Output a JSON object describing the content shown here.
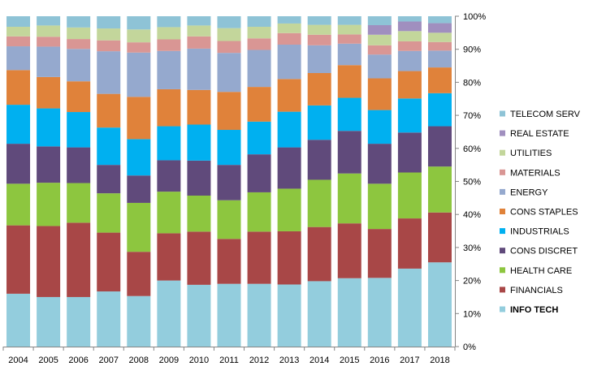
{
  "chart_data": {
    "type": "bar",
    "stacked": true,
    "normalized": true,
    "categories": [
      "2004",
      "2005",
      "2006",
      "2007",
      "2008",
      "2009",
      "2010",
      "2011",
      "2012",
      "2013",
      "2014",
      "2015",
      "2016",
      "2017",
      "2018"
    ],
    "y_ticks": [
      "0%",
      "10%",
      "20%",
      "30%",
      "40%",
      "50%",
      "60%",
      "70%",
      "80%",
      "90%",
      "100%"
    ],
    "ylim": [
      0,
      100
    ],
    "y_axis_side": "right",
    "grid": false,
    "legend_position": "right",
    "series": [
      {
        "name": "INFO TECH",
        "color": "#93CDDD",
        "bold": true,
        "values": [
          16,
          15,
          15,
          16.7,
          15.3,
          20,
          18.7,
          19,
          19,
          18.8,
          19.8,
          20.7,
          20.8,
          23.6,
          25.5
        ]
      },
      {
        "name": "FINANCIALS",
        "color": "#A84747",
        "values": [
          20.7,
          21.5,
          22.5,
          17.8,
          13.4,
          14.3,
          16.1,
          13.6,
          15.8,
          16.1,
          16.4,
          16.6,
          14.8,
          15.2,
          15.1
        ]
      },
      {
        "name": "HEALTH CARE",
        "color": "#8DC63F",
        "values": [
          12.6,
          13.1,
          12,
          11.9,
          14.8,
          12.6,
          10.9,
          11.7,
          11.9,
          12.9,
          14.3,
          15.1,
          13.7,
          13.9,
          13.9
        ]
      },
      {
        "name": "CONS DISCRET",
        "color": "#604A7B",
        "values": [
          12.1,
          11,
          10.8,
          8.6,
          8.3,
          9.5,
          10.6,
          10.7,
          11.5,
          12.5,
          12.1,
          12.9,
          12.1,
          12.1,
          12.2
        ]
      },
      {
        "name": "INDUSTRIALS",
        "color": "#00B0F0",
        "values": [
          11.8,
          11.5,
          10.7,
          11.3,
          11,
          10.3,
          10.9,
          10.6,
          9.9,
          10.8,
          10.4,
          10,
          10.2,
          10.3,
          10
        ]
      },
      {
        "name": "CONS STAPLES",
        "color": "#E0823A",
        "values": [
          10.5,
          9.5,
          9.3,
          10.2,
          12.8,
          11.2,
          10.5,
          11.5,
          10.5,
          9.9,
          9.8,
          9.9,
          9.6,
          8.3,
          7.8
        ]
      },
      {
        "name": "ENERGY",
        "color": "#95A9CE",
        "values": [
          7.2,
          9.2,
          9.8,
          12.9,
          13.4,
          11.6,
          12.5,
          11.8,
          11.2,
          10.4,
          8.4,
          6.5,
          7.2,
          6.1,
          5.1
        ]
      },
      {
        "name": "MATERIALS",
        "color": "#D99694",
        "values": [
          3,
          3,
          3,
          3.3,
          3.1,
          3.5,
          3.7,
          3.6,
          3.5,
          3.5,
          3.2,
          2.8,
          2.8,
          2.9,
          2.6
        ]
      },
      {
        "name": "UTILITIES",
        "color": "#C3D69B",
        "values": [
          2.9,
          3.4,
          3.5,
          3.6,
          3.9,
          3.7,
          3.3,
          3.9,
          3.5,
          2.9,
          3,
          2.9,
          3.2,
          3.1,
          2.8
        ]
      },
      {
        "name": "REAL ESTATE",
        "color": "#A08FBF",
        "values": [
          0,
          0,
          0,
          0,
          0,
          0,
          0,
          0,
          0,
          0,
          0,
          0,
          2.9,
          2.9,
          2.9
        ]
      },
      {
        "name": "TELECOM SERV",
        "color": "#8EC3D6",
        "values": [
          3.2,
          2.8,
          3.4,
          3.7,
          4,
          3.3,
          2.8,
          3.6,
          3.2,
          2.2,
          2.6,
          2.6,
          2.7,
          1.6,
          2.1
        ]
      }
    ]
  }
}
